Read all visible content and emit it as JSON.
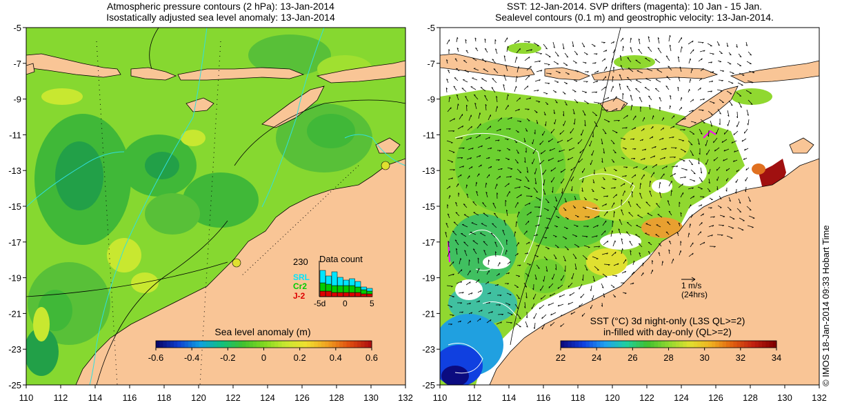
{
  "left_panel": {
    "title_line1": "Atmospheric pressure contours (2 hPa): 13-Jan-2014",
    "title_line2": "Isostatically adjusted sea level anomaly: 13-Jan-2014",
    "colorbar_title": "Sea level anomaly (m)",
    "colorbar_ticks": [
      "-0.6",
      "-0.4",
      "-0.2",
      "0",
      "0.2",
      "0.4",
      "0.6"
    ],
    "data_count": {
      "title": "Data count",
      "max_label": "230",
      "xticks": [
        "-5d",
        "0",
        "5"
      ],
      "missions": [
        {
          "name": "SRL",
          "color": "#00e5ff"
        },
        {
          "name": "Cr2",
          "color": "#00cc00"
        },
        {
          "name": "J-2",
          "color": "#dd0000"
        }
      ]
    }
  },
  "right_panel": {
    "title_line1": "SST: 12-Jan-2014. SVP drifters (magenta): 10 Jan - 15 Jan.",
    "title_line2": "Sealevel contours (0.1 m) and geostrophic velocity: 13-Jan-2014.",
    "scale_arrow_label": "1 m/s",
    "scale_arrow_sub": "(24hrs)",
    "colorbar_title_line1": "SST (°C)  3d night-only (L3S QL>=2)",
    "colorbar_title_line2": "in-filled with day-only (QL>=2)",
    "colorbar_ticks": [
      "22",
      "24",
      "26",
      "28",
      "30",
      "32",
      "34"
    ]
  },
  "axes": {
    "y_ticks": [
      "-5",
      "-7",
      "-9",
      "-11",
      "-13",
      "-15",
      "-17",
      "-19",
      "-21",
      "-23",
      "-25"
    ],
    "x_ticks": [
      "110",
      "112",
      "114",
      "116",
      "118",
      "120",
      "122",
      "124",
      "126",
      "128",
      "130",
      "132"
    ]
  },
  "side_stamp": "© IMOS 18-Jan-2014 09:33 Hobart Time",
  "colors": {
    "land": "#f9c596",
    "sla_ramp": [
      "#08086b",
      "#1040d0",
      "#10a0e0",
      "#10c080",
      "#40c030",
      "#80d820",
      "#c8e830",
      "#f0e030",
      "#f0a020",
      "#e05010",
      "#b01010"
    ],
    "sst_ramp": [
      "#0b0b80",
      "#1040e0",
      "#20a0f0",
      "#20d0a0",
      "#40c030",
      "#90d830",
      "#e0e030",
      "#f0b020",
      "#e06010",
      "#c02010",
      "#800000"
    ]
  }
}
